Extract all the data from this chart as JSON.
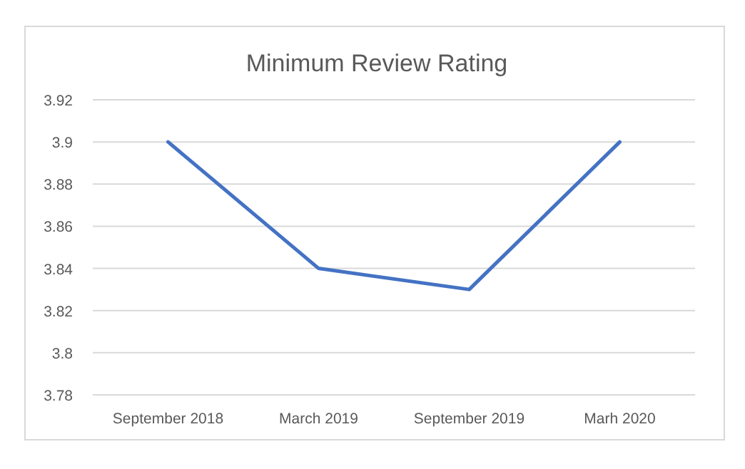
{
  "chart_data": {
    "type": "line",
    "title": "Minimum Review Rating",
    "categories": [
      "September 2018",
      "March 2019",
      "September 2019",
      "Marh 2020"
    ],
    "series": [
      {
        "color": "#4472c4",
        "values": [
          3.9,
          3.84,
          3.83,
          3.9
        ]
      }
    ],
    "ylim": [
      3.78,
      3.92
    ],
    "yticks": [
      3.78,
      3.8,
      3.82,
      3.84,
      3.86,
      3.88,
      3.9,
      3.92
    ],
    "grid": "y",
    "marker": "none",
    "line_style": "solid"
  }
}
